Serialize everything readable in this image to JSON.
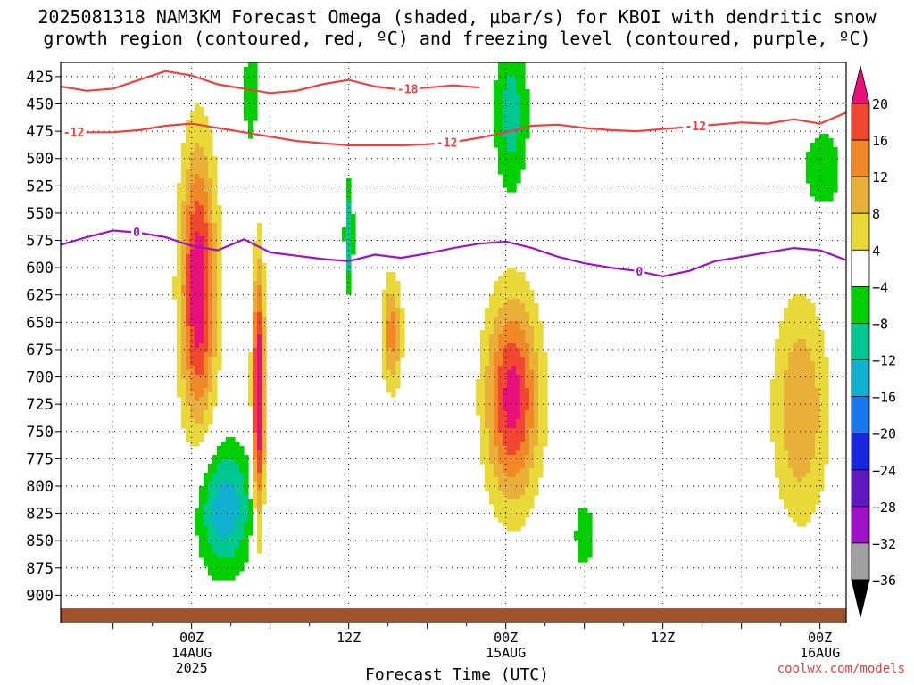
{
  "header": {
    "title_line1": "2025081318 NAM3KM Forecast Omega (shaded, μbar/s) for KBOI with dendritic snow",
    "title_line2": "growth region (contoured, red, ºC) and freezing level (contoured, purple, ºC)"
  },
  "footer": {
    "watermark": "coolwx.com/models"
  },
  "chart_data": {
    "type": "heatmap",
    "title": "2025081318 NAM3KM Forecast Omega (shaded, μbar/s) for KBOI with dendritic snow growth region (contoured, red, ºC) and freezing level (contoured, purple, ºC)",
    "xlabel": "Forecast Time (UTC)",
    "ylabel": "",
    "x_units": "hours since 2025-08-13 18Z",
    "xlim": [
      -4,
      56
    ],
    "ylim": [
      925,
      412
    ],
    "y_scale": "pressure (hPa), decreasing upward",
    "y_ticks": [
      425,
      450,
      475,
      500,
      525,
      550,
      575,
      600,
      625,
      650,
      675,
      700,
      725,
      750,
      775,
      800,
      825,
      850,
      875,
      900
    ],
    "x_ticks": [
      {
        "x": 6,
        "labels": [
          "00Z",
          "14AUG",
          "2025"
        ]
      },
      {
        "x": 18,
        "labels": [
          "12Z"
        ]
      },
      {
        "x": 30,
        "labels": [
          "00Z",
          "15AUG"
        ]
      },
      {
        "x": 42,
        "labels": [
          "12Z"
        ]
      },
      {
        "x": 54,
        "labels": [
          "00Z",
          "16AUG"
        ]
      }
    ],
    "grid": true,
    "terrain_level_hpa": 912,
    "colorbar": {
      "levels": [
        -36,
        -32,
        -28,
        -24,
        -20,
        -16,
        -12,
        -8,
        -4,
        4,
        8,
        12,
        16,
        20
      ],
      "tick_labels": [
        "20",
        "16",
        "12",
        "8",
        "4",
        "−4",
        "−8",
        "−12",
        "−16",
        "−20",
        "−24",
        "−28",
        "−32",
        "−36"
      ],
      "bands": [
        {
          "range": [
            20,
            999
          ],
          "color": "#e8107a"
        },
        {
          "range": [
            16,
            20
          ],
          "color": "#f04830"
        },
        {
          "range": [
            12,
            16
          ],
          "color": "#f08828"
        },
        {
          "range": [
            8,
            12
          ],
          "color": "#e8b038"
        },
        {
          "range": [
            4,
            8
          ],
          "color": "#e8d838"
        },
        {
          "range": [
            -4,
            4
          ],
          "color": "#ffffff"
        },
        {
          "range": [
            -8,
            -4
          ],
          "color": "#00d000"
        },
        {
          "range": [
            -12,
            -8
          ],
          "color": "#00c890"
        },
        {
          "range": [
            -16,
            -12
          ],
          "color": "#10b0d0"
        },
        {
          "range": [
            -20,
            -16
          ],
          "color": "#1878f0"
        },
        {
          "range": [
            -24,
            -20
          ],
          "color": "#1828e0"
        },
        {
          "range": [
            -28,
            -24
          ],
          "color": "#6018c0"
        },
        {
          "range": [
            -32,
            -28
          ],
          "color": "#a010c8"
        },
        {
          "range": [
            -36,
            -32
          ],
          "color": "#a0a0a0"
        },
        {
          "range": [
            -999,
            -36
          ],
          "color": "#000000"
        }
      ]
    },
    "omega_features": [
      {
        "label": "upward motion",
        "center": [
          6.5,
          620
        ],
        "peak": 24,
        "x_half_width": 1.6,
        "p_half_width": 150
      },
      {
        "label": "upward motion",
        "center": [
          11.1,
          720
        ],
        "peak": 26,
        "x_half_width": 0.55,
        "p_half_width": 140
      },
      {
        "label": "upward motion",
        "center": [
          30.5,
          720
        ],
        "peak": 22,
        "x_half_width": 2.4,
        "p_half_width": 110
      },
      {
        "label": "upward motion",
        "center": [
          52.5,
          730
        ],
        "peak": 12,
        "x_half_width": 2.5,
        "p_half_width": 120
      },
      {
        "label": "upward motion",
        "center": [
          21.3,
          660
        ],
        "peak": 14,
        "x_half_width": 0.9,
        "p_half_width": 60
      },
      {
        "label": "subsidence",
        "center": [
          8.5,
          820
        ],
        "peak": -15,
        "x_half_width": 2.6,
        "p_half_width": 70
      },
      {
        "label": "subsidence",
        "center": [
          30.4,
          460
        ],
        "peak": -10,
        "x_half_width": 1.6,
        "p_half_width": 90
      },
      {
        "label": "subsidence",
        "center": [
          18.0,
          570
        ],
        "peak": -12,
        "x_half_width": 0.4,
        "p_half_width": 60
      },
      {
        "label": "subsidence",
        "center": [
          10.5,
          440
        ],
        "peak": -8,
        "x_half_width": 0.6,
        "p_half_width": 60
      },
      {
        "label": "subsidence",
        "center": [
          54.2,
          510
        ],
        "peak": -7,
        "x_half_width": 2.0,
        "p_half_width": 50
      },
      {
        "label": "subsidence",
        "center": [
          36.0,
          845
        ],
        "peak": -7,
        "x_half_width": 1.0,
        "p_half_width": 40
      }
    ],
    "series": [
      {
        "name": "-18",
        "color": "#f04040",
        "label_at": 22.5,
        "x": [
          -4,
          -2,
          0,
          2,
          4,
          6,
          8,
          10,
          12,
          14,
          16,
          18,
          20,
          22,
          24,
          26,
          28
        ],
        "y": [
          434,
          438,
          436,
          428,
          420,
          424,
          432,
          436,
          440,
          438,
          432,
          428,
          434,
          437,
          435,
          433,
          435
        ]
      },
      {
        "name": "-12",
        "color": "#f04040",
        "label_at": [
          -3,
          25.5,
          44.5
        ],
        "x": [
          -4,
          -2,
          0,
          2,
          4,
          6,
          8,
          10,
          12,
          14,
          16,
          18,
          20,
          22,
          24,
          26,
          28,
          30,
          32,
          34,
          36,
          38,
          40,
          42,
          44,
          46,
          48,
          50,
          52,
          54,
          56
        ],
        "y": [
          476,
          476,
          476,
          474,
          470,
          468,
          472,
          476,
          480,
          484,
          486,
          488,
          488,
          488,
          487,
          485,
          481,
          476,
          470,
          469,
          472,
          474,
          475,
          473,
          471,
          469,
          467,
          468,
          464,
          468,
          458
        ]
      },
      {
        "name": "0",
        "color": "#a010c8",
        "label_at": [
          1.8,
          40.2
        ],
        "x": [
          -4,
          -2,
          0,
          2,
          4,
          6,
          8,
          10,
          12,
          14,
          16,
          18,
          20,
          22,
          24,
          26,
          28,
          30,
          32,
          34,
          36,
          38,
          40,
          42,
          44,
          46,
          48,
          50,
          52,
          54,
          56
        ],
        "y": [
          579,
          572,
          566,
          568,
          572,
          580,
          584,
          574,
          586,
          589,
          592,
          594,
          588,
          591,
          587,
          582,
          578,
          576,
          582,
          590,
          596,
          600,
          603,
          608,
          603,
          594,
          590,
          586,
          582,
          584,
          593
        ]
      }
    ]
  }
}
